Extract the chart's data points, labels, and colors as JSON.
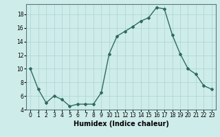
{
  "x": [
    0,
    1,
    2,
    3,
    4,
    5,
    6,
    7,
    8,
    9,
    10,
    11,
    12,
    13,
    14,
    15,
    16,
    17,
    18,
    19,
    20,
    21,
    22,
    23
  ],
  "y": [
    10,
    7,
    5,
    6,
    5.5,
    4.5,
    4.8,
    4.8,
    4.8,
    6.5,
    12.2,
    14.8,
    15.5,
    16.2,
    17.0,
    17.5,
    19.0,
    18.8,
    15.0,
    12.2,
    10.0,
    9.2,
    7.5,
    7.0
  ],
  "line_color": "#2e6b5e",
  "marker": "D",
  "marker_size": 2,
  "linewidth": 1.0,
  "xlabel": "Humidex (Indice chaleur)",
  "xlim": [
    -0.5,
    23.5
  ],
  "ylim": [
    4,
    19.5
  ],
  "yticks": [
    4,
    6,
    8,
    10,
    12,
    14,
    16,
    18
  ],
  "xticks": [
    0,
    1,
    2,
    3,
    4,
    5,
    6,
    7,
    8,
    9,
    10,
    11,
    12,
    13,
    14,
    15,
    16,
    17,
    18,
    19,
    20,
    21,
    22,
    23
  ],
  "bg_color": "#ceecea",
  "grid_color": "#a8d5d1",
  "tick_fontsize": 5.5,
  "label_fontsize": 7
}
